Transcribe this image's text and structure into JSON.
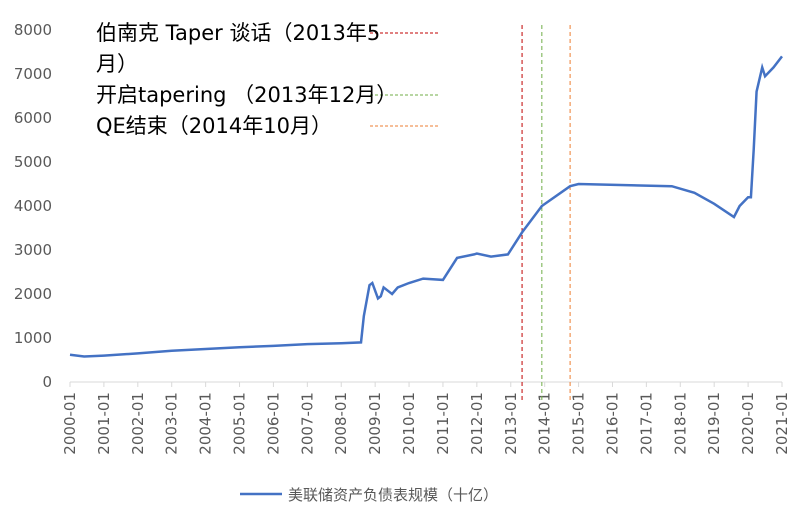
{
  "chart_data": {
    "type": "line",
    "x": [
      "2000-01",
      "2000-06",
      "2001-01",
      "2002-01",
      "2003-01",
      "2004-01",
      "2005-01",
      "2006-01",
      "2007-01",
      "2008-01",
      "2008-08",
      "2008-09",
      "2008-11",
      "2008-12",
      "2009-02",
      "2009-03",
      "2009-04",
      "2009-06",
      "2009-07",
      "2009-09",
      "2010-01",
      "2010-06",
      "2011-01",
      "2011-06",
      "2011-12",
      "2012-01",
      "2012-06",
      "2012-12",
      "2013-05",
      "2013-12",
      "2014-10",
      "2015-01",
      "2017-10",
      "2018-06",
      "2019-01",
      "2019-08",
      "2019-10",
      "2020-01",
      "2020-02",
      "2020-03",
      "2020-04",
      "2020-06",
      "2020-07",
      "2020-10",
      "2021-01"
    ],
    "series": [
      {
        "name": "美联储资产负债表规模（十亿）",
        "color": "#4472c4",
        "values": [
          620,
          580,
          600,
          650,
          710,
          750,
          790,
          820,
          860,
          880,
          900,
          1500,
          2200,
          2250,
          1900,
          1950,
          2150,
          2050,
          2000,
          2150,
          2250,
          2350,
          2320,
          2820,
          2900,
          2920,
          2850,
          2900,
          3400,
          4000,
          4450,
          4500,
          4450,
          4300,
          4050,
          3750,
          4000,
          4200,
          4200,
          5300,
          6600,
          7150,
          6950,
          7150,
          7400
        ]
      }
    ],
    "xlim": [
      "2000-01",
      "2021-01"
    ],
    "xticks": [
      "2000-01",
      "2001-01",
      "2002-01",
      "2003-01",
      "2004-01",
      "2005-01",
      "2006-01",
      "2007-01",
      "2008-01",
      "2009-01",
      "2010-01",
      "2011-01",
      "2012-01",
      "2013-01",
      "2014-01",
      "2015-01",
      "2016-01",
      "2017-01",
      "2018-01",
      "2019-01",
      "2020-01",
      "2021-01"
    ],
    "ylim": [
      0,
      8000
    ],
    "yticks": [
      0,
      1000,
      2000,
      3000,
      4000,
      5000,
      6000,
      7000,
      8000
    ],
    "annotations": [
      {
        "x": "2013-05",
        "label": "伯南克 Taper 谈话（2013年5月）",
        "color": "#c00000"
      },
      {
        "x": "2013-12",
        "label": "开启tapering （2013年12月）",
        "color": "#70ad47"
      },
      {
        "x": "2014-10",
        "label": "QE结束（2014年10月）",
        "color": "#ed7d31"
      }
    ]
  }
}
